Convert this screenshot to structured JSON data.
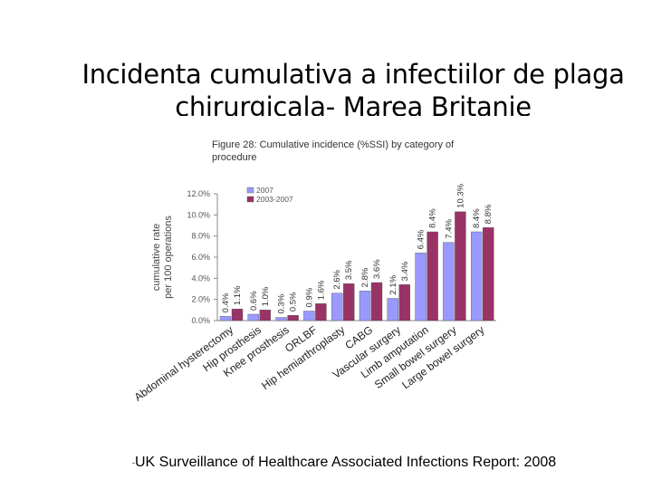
{
  "slide": {
    "title_line1": "Incidenta cumulativa a infectiilor de plaga",
    "title_line2": "chirurgicala- Marea Britanie"
  },
  "figure": {
    "caption_line1": "Figure 28: Cumulative incidence (%SSI) by category of",
    "caption_line2": "procedure"
  },
  "source": {
    "dash": "-",
    "text": "UK Surveillance of Healthcare Associated Infections Report: 2008"
  },
  "chart_data": {
    "type": "bar",
    "ylabel_line1": "cumulative rate",
    "ylabel_line2": "per 100 operations",
    "ylim": [
      0,
      12
    ],
    "yticks": [
      "0.0%",
      "2.0%",
      "4.0%",
      "6.0%",
      "8.0%",
      "10.0%",
      "12.0%"
    ],
    "legend_position": "top-left",
    "categories": [
      "Abdominal hysterectomy",
      "Hip prosthesis",
      "Knee prosthesis",
      "ORLBF",
      "Hip hemiarthroplasty",
      "CABG",
      "Vascular surgery",
      "Limb amputation",
      "Small bowel surgery",
      "Large bowel surgery"
    ],
    "series": [
      {
        "name": "2007",
        "color": "#9999ff",
        "values": [
          0.4,
          0.6,
          0.3,
          0.9,
          2.6,
          2.8,
          2.1,
          6.4,
          7.4,
          8.4
        ],
        "labels": [
          "0.4%",
          "0.6%",
          "0.3%",
          "0.9%",
          "2.6%",
          "2.8%",
          "2.1%",
          "6.4%",
          "7.4%",
          "8.4%"
        ]
      },
      {
        "name": "2003-2007",
        "color": "#993366",
        "values": [
          1.1,
          1.0,
          0.5,
          1.6,
          3.5,
          3.6,
          3.4,
          8.4,
          10.3,
          8.8
        ],
        "labels": [
          "1.1%",
          "1.0%",
          "0.5%",
          "1.6%",
          "3.5%",
          "3.6%",
          "3.4%",
          "8.4%",
          "10.3%",
          "8.8%"
        ]
      }
    ]
  }
}
